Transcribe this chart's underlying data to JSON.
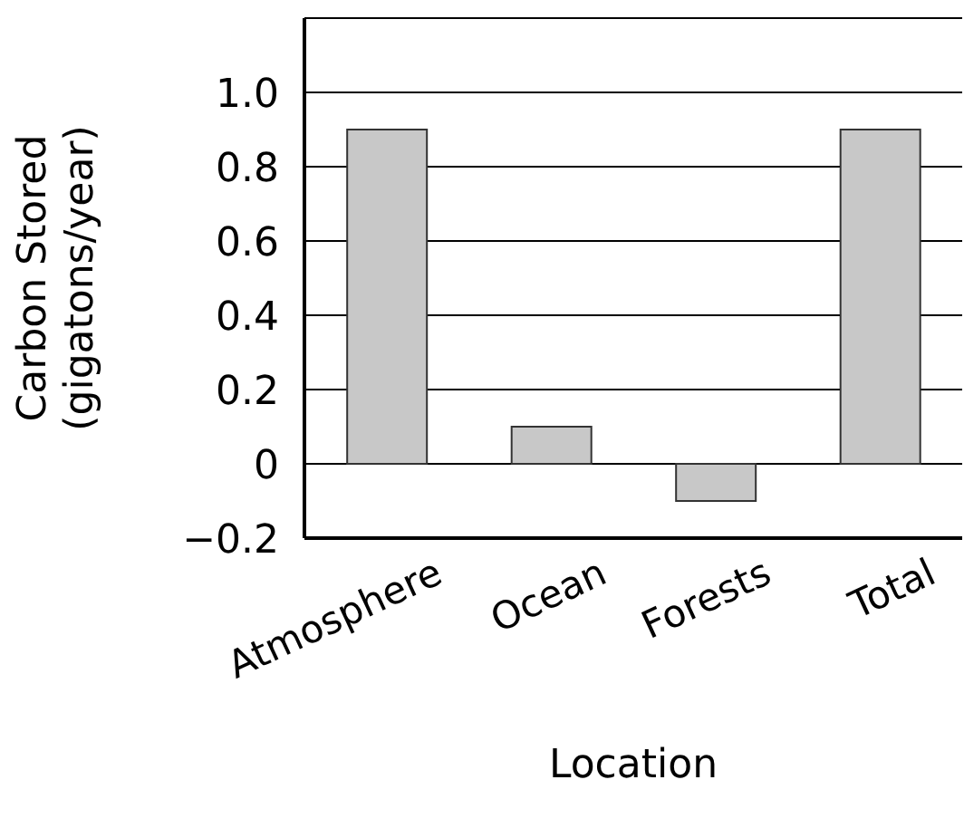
{
  "chart_data": {
    "type": "bar",
    "xlabel": "Location",
    "ylabel": "Carbon Stored (gigatons/year)",
    "categories": [
      "Atmosphere",
      "Ocean",
      "Forests",
      "Total"
    ],
    "values": [
      0.9,
      0.1,
      -0.1,
      0.9
    ],
    "color": "#c8c8c8",
    "ylim": [
      -0.2,
      1.2
    ],
    "yticks": [
      {
        "value": -0.2,
        "label": "−0.2"
      },
      0,
      0.2,
      0.4,
      0.6,
      0.8,
      {
        "value": 1.0,
        "label": "1.0"
      }
    ],
    "grid": "y",
    "legend": false
  }
}
